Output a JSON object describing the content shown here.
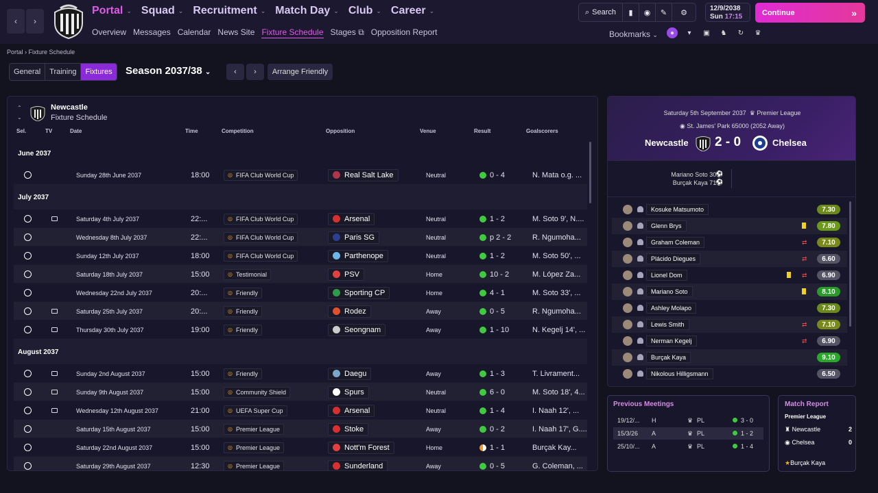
{
  "nav": {
    "back": "‹",
    "forward": "›"
  },
  "menu": [
    {
      "label": "Portal",
      "active": true
    },
    {
      "label": "Squad"
    },
    {
      "label": "Recruitment"
    },
    {
      "label": "Match Day"
    },
    {
      "label": "Club"
    },
    {
      "label": "Career"
    }
  ],
  "submenu": [
    "Overview",
    "Messages",
    "Calendar",
    "News Site",
    "Fixture Schedule",
    "Stages",
    "Opposition Report"
  ],
  "toolbar": {
    "search": "Search"
  },
  "date": {
    "line1": "12/9/2038",
    "day": "Sun",
    "time": "17:15"
  },
  "continue_label": "Continue",
  "bookmarks_label": "Bookmarks",
  "breadcrumb": {
    "root": "Portal",
    "current": "Fixture Schedule"
  },
  "tabs": [
    "General",
    "Training",
    "Fixtures"
  ],
  "season": "Season 2037/38",
  "arrange": "Arrange Friendly",
  "panel": {
    "team": "Newcastle",
    "subtitle": "Fixture Schedule"
  },
  "columns": {
    "sel": "Sel.",
    "tv": "TV",
    "date": "Date",
    "time": "Time",
    "comp": "Competition",
    "opp": "Opposition",
    "venue": "Venue",
    "result": "Result",
    "scorers": "Goalscorers"
  },
  "fixtures": [
    {
      "month": "June 2037",
      "rows": [
        {
          "tv": false,
          "date": "Sunday 28th June 2037",
          "time": "18:00",
          "comp": "FIFA Club World Cup",
          "opp": "Real Salt Lake",
          "venue": "Neutral",
          "result": "0 - 4",
          "scorers": "N. Mata o.g. ...",
          "opp_color": "#b0344a"
        }
      ]
    },
    {
      "month": "July 2037",
      "rows": [
        {
          "tv": true,
          "date": "Saturday 4th July 2037",
          "time": "22:...",
          "comp": "FIFA Club World Cup",
          "opp": "Arsenal",
          "venue": "Neutral",
          "result": "1 - 2",
          "scorers": "M. Soto 9', N....",
          "opp_color": "#d83030"
        },
        {
          "tv": false,
          "date": "Wednesday 8th July 2037",
          "time": "22:...",
          "comp": "FIFA Club World Cup",
          "opp": "Paris SG",
          "venue": "Neutral",
          "result": "p 2 - 2",
          "scorers": "R. Ngumoha...",
          "opp_color": "#2a3f8f"
        },
        {
          "tv": false,
          "date": "Sunday 12th July 2037",
          "time": "18:00",
          "comp": "FIFA Club World Cup",
          "opp": "Parthenope",
          "venue": "Neutral",
          "result": "1 - 2",
          "scorers": "M. Soto 50', ...",
          "opp_color": "#6fb6e8"
        },
        {
          "tv": false,
          "date": "Saturday 18th July 2037",
          "time": "15:00",
          "comp": "Testimonial",
          "opp": "PSV",
          "venue": "Home",
          "result": "10 - 2",
          "scorers": "M. López Za...",
          "opp_color": "#e04040"
        },
        {
          "tv": false,
          "date": "Wednesday 22nd July 2037",
          "time": "20:...",
          "comp": "Friendly",
          "opp": "Sporting CP",
          "venue": "Home",
          "result": "4 - 1",
          "scorers": "M. Soto 33', ...",
          "opp_color": "#2f9a4a"
        },
        {
          "tv": true,
          "date": "Saturday 25th July 2037",
          "time": "20:...",
          "comp": "Friendly",
          "opp": "Rodez",
          "venue": "Away",
          "result": "0 - 5",
          "scorers": "R. Ngumoha...",
          "opp_color": "#e0502a"
        },
        {
          "tv": true,
          "date": "Thursday 30th July 2037",
          "time": "19:00",
          "comp": "Friendly",
          "opp": "Seongnam",
          "venue": "Away",
          "result": "1 - 10",
          "scorers": "N. Kegelj 14', ...",
          "opp_color": "#cccccc"
        }
      ]
    },
    {
      "month": "August 2037",
      "rows": [
        {
          "tv": true,
          "date": "Sunday 2nd August 2037",
          "time": "15:00",
          "comp": "Friendly",
          "opp": "Daegu",
          "venue": "Away",
          "result": "1 - 3",
          "scorers": "T. Livrament...",
          "opp_color": "#7aa8c8"
        },
        {
          "tv": true,
          "date": "Sunday 9th August 2037",
          "time": "15:00",
          "comp": "Community Shield",
          "opp": "Spurs",
          "venue": "Neutral",
          "result": "6 - 0",
          "scorers": "M. Soto 18', 4...",
          "opp_color": "#ffffff"
        },
        {
          "tv": true,
          "date": "Wednesday 12th August 2037",
          "time": "21:00",
          "comp": "UEFA Super Cup",
          "opp": "Arsenal",
          "venue": "Neutral",
          "result": "1 - 4",
          "scorers": "I. Naah 12', ...",
          "opp_color": "#d83030"
        },
        {
          "tv": false,
          "date": "Saturday 15th August 2037",
          "time": "15:00",
          "comp": "Premier League",
          "opp": "Stoke",
          "venue": "Away",
          "result": "0 - 2",
          "scorers": "I. Naah 17', G....",
          "opp_color": "#d83030"
        },
        {
          "tv": false,
          "date": "Saturday 22nd August 2037",
          "time": "15:00",
          "comp": "Premier League",
          "opp": "Nott'm Forest",
          "venue": "Home",
          "result": "1 - 1",
          "scorers": "Burçak Kay...",
          "opp_color": "#e04040",
          "draw": true
        },
        {
          "tv": false,
          "date": "Saturday 29th August 2037",
          "time": "12:30",
          "comp": "Premier League",
          "opp": "Sunderland",
          "venue": "Away",
          "result": "0 - 5",
          "scorers": "G. Coleman, ...",
          "opp_color": "#d83030"
        }
      ]
    }
  ],
  "match": {
    "date": "Saturday 5th September 2037",
    "competition": "Premier League",
    "stadium": "St. James' Park",
    "capacity": "65000",
    "away_count": "(2052 Away)",
    "home": "Newcastle",
    "away": "Chelsea",
    "score": "2 - 0",
    "scorers": [
      "Mariano Soto 30'",
      "Burçak Kaya 71'"
    ]
  },
  "players": [
    {
      "name": "Kosuke Matsumoto",
      "rating": "7.30",
      "color": "#6b8a1a"
    },
    {
      "name": "Glenn Brys",
      "rating": "7.80",
      "color": "#6b9a1a",
      "yellow": true
    },
    {
      "name": "Graham Coleman",
      "rating": "7.10",
      "color": "#7a8a1a",
      "sub": true
    },
    {
      "name": "Plácido Diegues",
      "rating": "6.60",
      "color": "#555566",
      "sub": true
    },
    {
      "name": "Lionel Dom",
      "rating": "6.90",
      "color": "#555566",
      "yellow": true,
      "sub": true
    },
    {
      "name": "Mariano Soto",
      "rating": "8.10",
      "color": "#2a9a2a",
      "yellow": true
    },
    {
      "name": "Ashley Molapo",
      "rating": "7.30",
      "color": "#6b8a1a"
    },
    {
      "name": "Lewis Smith",
      "rating": "7.10",
      "color": "#7a8a1a",
      "sub": true
    },
    {
      "name": "Nerman Kegelj",
      "rating": "6.90",
      "color": "#555566",
      "sub": true
    },
    {
      "name": "Burçak Kaya",
      "rating": "9.10",
      "color": "#2aa82a"
    },
    {
      "name": "Nikolous Hilligsmann",
      "rating": "6.50",
      "color": "#555566"
    }
  ],
  "previous": {
    "title": "Previous Meetings",
    "rows": [
      {
        "date": "19/12/...",
        "venue": "H",
        "comp": "PL",
        "result": "3 - 0"
      },
      {
        "date": "15/3/26",
        "venue": "A",
        "comp": "PL",
        "result": "1 - 2"
      },
      {
        "date": "25/10/...",
        "venue": "A",
        "comp": "PL",
        "result": "1 - 4"
      }
    ]
  },
  "report": {
    "title": "Match Report",
    "league": "Premier League",
    "home": "Newcastle",
    "home_goals": "2",
    "away": "Chelsea",
    "away_goals": "0",
    "pom": "Burçak Kaya"
  }
}
